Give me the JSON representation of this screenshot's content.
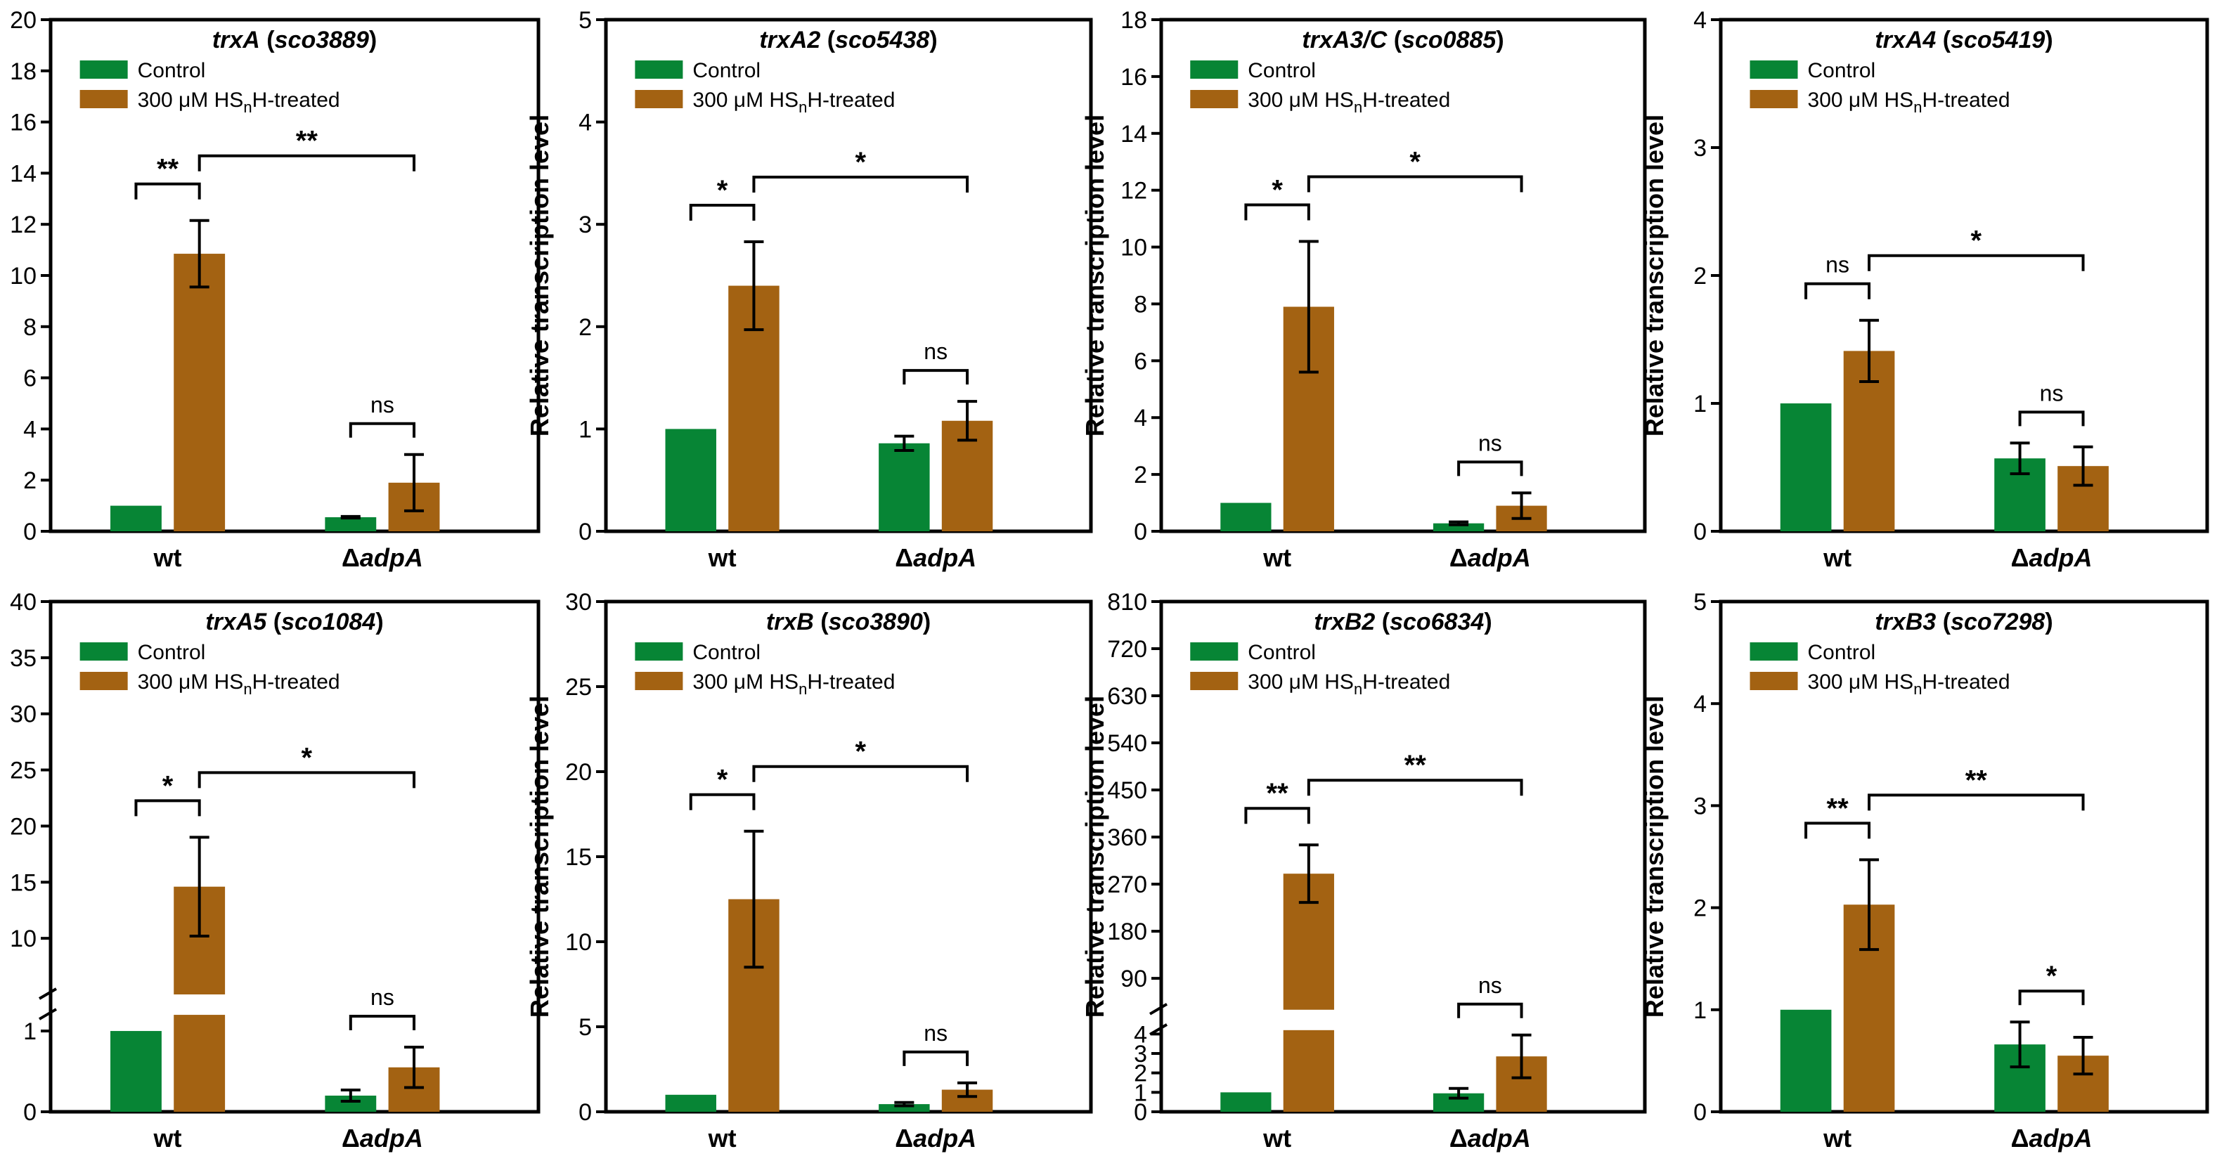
{
  "colors": {
    "control": "#078535",
    "treated": "#A36212",
    "axis": "#000000"
  },
  "legend": {
    "control": "Control",
    "treated_prefix": "300 μM HS",
    "treated_sub": "n",
    "treated_suffix": "H-treated"
  },
  "ylabel": "Relative transcription level",
  "categories": [
    "wt",
    "ΔadpA"
  ],
  "category_plain": "wt",
  "category_delta": "Δ",
  "category_italic": "adpA",
  "chart_data": [
    {
      "type": "bar",
      "title_gene": "trxA",
      "title_id": "sco3889",
      "categories": [
        "wt",
        "ΔadpA"
      ],
      "ylim": [
        0,
        20
      ],
      "yticks": [
        0,
        2,
        4,
        6,
        8,
        10,
        12,
        14,
        16,
        18,
        20
      ],
      "series": [
        {
          "name": "Control",
          "values": [
            1.0,
            0.55
          ],
          "errors": [
            0,
            0.03
          ]
        },
        {
          "name": "300 μM HSnH-treated",
          "values": [
            10.85,
            1.9
          ],
          "errors": [
            1.3,
            1.1
          ]
        }
      ],
      "significance": [
        {
          "label": "**",
          "between": "wt Control vs wt Treated"
        },
        {
          "label": "ns",
          "between": "ΔadpA Control vs ΔadpA Treated"
        },
        {
          "label": "**",
          "between": "wt Treated vs ΔadpA Treated"
        }
      ]
    },
    {
      "type": "bar",
      "title_gene": "trxA2",
      "title_id": "sco5438",
      "categories": [
        "wt",
        "ΔadpA"
      ],
      "ylim": [
        0,
        5
      ],
      "yticks": [
        0,
        1,
        2,
        3,
        4,
        5
      ],
      "series": [
        {
          "name": "Control",
          "values": [
            1.0,
            0.86
          ],
          "errors": [
            0,
            0.07
          ]
        },
        {
          "name": "300 μM HSnH-treated",
          "values": [
            2.4,
            1.08
          ],
          "errors": [
            0.43,
            0.19
          ]
        }
      ],
      "significance": [
        {
          "label": "*",
          "between": "wt Control vs wt Treated"
        },
        {
          "label": "ns",
          "between": "ΔadpA Control vs ΔadpA Treated"
        },
        {
          "label": "*",
          "between": "wt Treated vs ΔadpA Treated"
        }
      ]
    },
    {
      "type": "bar",
      "title_gene": "trxA3/C",
      "title_id": "sco0885",
      "categories": [
        "wt",
        "ΔadpA"
      ],
      "ylim": [
        0,
        18
      ],
      "yticks": [
        0,
        2,
        4,
        6,
        8,
        10,
        12,
        14,
        16,
        18
      ],
      "series": [
        {
          "name": "Control",
          "values": [
            1.0,
            0.28
          ],
          "errors": [
            0,
            0.05
          ]
        },
        {
          "name": "300 μM HSnH-treated",
          "values": [
            7.9,
            0.9
          ],
          "errors": [
            2.3,
            0.45
          ]
        }
      ],
      "significance": [
        {
          "label": "*",
          "between": "wt Control vs wt Treated"
        },
        {
          "label": "ns",
          "between": "ΔadpA Control vs ΔadpA Treated"
        },
        {
          "label": "*",
          "between": "wt Treated vs ΔadpA Treated"
        }
      ]
    },
    {
      "type": "bar",
      "title_gene": "trxA4",
      "title_id": "sco5419",
      "categories": [
        "wt",
        "ΔadpA"
      ],
      "ylim": [
        0,
        4
      ],
      "yticks": [
        0,
        1,
        2,
        3,
        4
      ],
      "series": [
        {
          "name": "Control",
          "values": [
            1.0,
            0.57
          ],
          "errors": [
            0,
            0.12
          ]
        },
        {
          "name": "300 μM HSnH-treated",
          "values": [
            1.41,
            0.51
          ],
          "errors": [
            0.24,
            0.15
          ]
        }
      ],
      "significance": [
        {
          "label": "ns",
          "between": "wt Control vs wt Treated"
        },
        {
          "label": "ns",
          "between": "ΔadpA Control vs ΔadpA Treated"
        },
        {
          "label": "*",
          "between": "wt Treated vs ΔadpA Treated"
        }
      ]
    },
    {
      "type": "bar",
      "title_gene": "trxA5",
      "title_id": "sco1084",
      "categories": [
        "wt",
        "ΔadpA"
      ],
      "ylim": [
        0,
        40
      ],
      "yticks": [
        0,
        1,
        10,
        15,
        20,
        25,
        30,
        35,
        40
      ],
      "axis_break": {
        "lower_max": 1.2,
        "upper_min": 5
      },
      "series": [
        {
          "name": "Control",
          "values": [
            1.0,
            0.2
          ],
          "errors": [
            0,
            0.07
          ]
        },
        {
          "name": "300 μM HSnH-treated",
          "values": [
            14.6,
            0.55
          ],
          "errors": [
            4.4,
            0.25
          ]
        }
      ],
      "significance": [
        {
          "label": "*",
          "between": "wt Control vs wt Treated"
        },
        {
          "label": "ns",
          "between": "ΔadpA Control vs ΔadpA Treated"
        },
        {
          "label": "*",
          "between": "wt Treated vs ΔadpA Treated"
        }
      ]
    },
    {
      "type": "bar",
      "title_gene": "trxB",
      "title_id": "sco3890",
      "categories": [
        "wt",
        "ΔadpA"
      ],
      "ylim": [
        0,
        30
      ],
      "yticks": [
        0,
        5,
        10,
        15,
        20,
        25,
        30
      ],
      "series": [
        {
          "name": "Control",
          "values": [
            1.0,
            0.45
          ],
          "errors": [
            0,
            0.1
          ]
        },
        {
          "name": "300 μM HSnH-treated",
          "values": [
            12.5,
            1.3
          ],
          "errors": [
            4.0,
            0.4
          ]
        }
      ],
      "significance": [
        {
          "label": "*",
          "between": "wt Control vs wt Treated"
        },
        {
          "label": "ns",
          "between": "ΔadpA Control vs ΔadpA Treated"
        },
        {
          "label": "*",
          "between": "wt Treated vs ΔadpA Treated"
        }
      ]
    },
    {
      "type": "bar",
      "title_gene": "trxB2",
      "title_id": "sco6834",
      "categories": [
        "wt",
        "ΔadpA"
      ],
      "ylim": [
        0,
        810
      ],
      "yticks": [
        0,
        1,
        2,
        3,
        4,
        90,
        180,
        270,
        360,
        450,
        540,
        630,
        720,
        810
      ],
      "axis_break": {
        "lower_max": 4.2,
        "upper_min": 30
      },
      "series": [
        {
          "name": "Control",
          "values": [
            1.0,
            0.95
          ],
          "errors": [
            0,
            0.25
          ]
        },
        {
          "name": "300 μM HSnH-treated",
          "values": [
            290,
            2.85
          ],
          "errors": [
            55,
            1.1
          ]
        }
      ],
      "significance": [
        {
          "label": "**",
          "between": "wt Control vs wt Treated"
        },
        {
          "label": "ns",
          "between": "ΔadpA Control vs ΔadpA Treated"
        },
        {
          "label": "**",
          "between": "wt Treated vs ΔadpA Treated"
        }
      ]
    },
    {
      "type": "bar",
      "title_gene": "trxB3",
      "title_id": "sco7298",
      "categories": [
        "wt",
        "ΔadpA"
      ],
      "ylim": [
        0,
        5
      ],
      "yticks": [
        0,
        1,
        2,
        3,
        4,
        5
      ],
      "series": [
        {
          "name": "Control",
          "values": [
            1.0,
            0.66
          ],
          "errors": [
            0,
            0.22
          ]
        },
        {
          "name": "300 μM HSnH-treated",
          "values": [
            2.03,
            0.55
          ],
          "errors": [
            0.44,
            0.18
          ]
        }
      ],
      "significance": [
        {
          "label": "**",
          "between": "wt Control vs wt Treated"
        },
        {
          "label": "*",
          "between": "ΔadpA Control vs ΔadpA Treated"
        },
        {
          "label": "**",
          "between": "wt Treated vs ΔadpA Treated"
        }
      ]
    }
  ]
}
